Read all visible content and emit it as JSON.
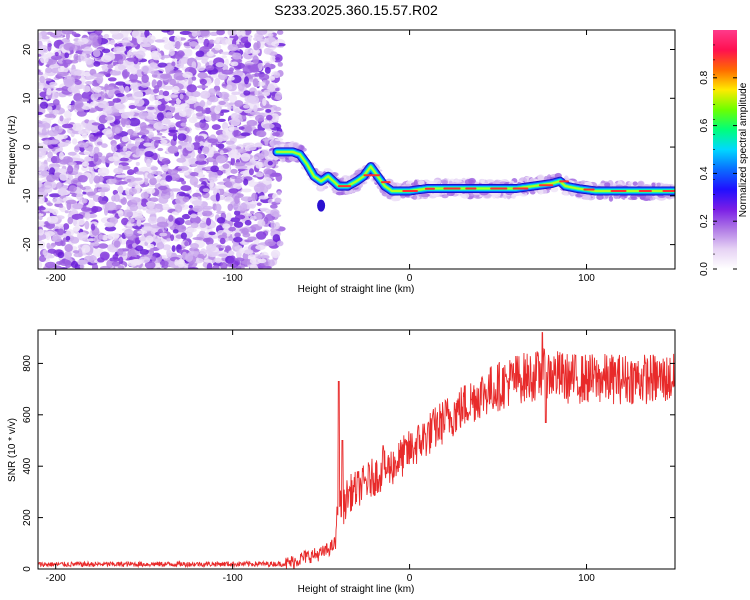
{
  "title": "S233.2025.360.15.57.R02",
  "chart_data": [
    {
      "type": "heatmap",
      "xlabel": "Height of straight line (km)",
      "ylabel": "Frequency (Hz)",
      "xlim": [
        -210,
        150
      ],
      "ylim": [
        -25,
        24
      ],
      "xticks": [
        -200,
        -100,
        0,
        100
      ],
      "yticks": [
        -20,
        -10,
        0,
        10,
        20
      ],
      "noise_region_x": [
        -210,
        -73
      ],
      "signal_track": {
        "x": [
          -75,
          -66,
          -62,
          -58,
          -54,
          -50,
          -46,
          -40,
          -35,
          -30,
          -26,
          -22,
          -18,
          -14,
          -10,
          -5,
          0,
          10,
          20,
          30,
          40,
          50,
          60,
          70,
          80,
          85,
          88,
          95,
          105,
          120,
          150
        ],
        "y": [
          -1,
          -1,
          -1.5,
          -3.5,
          -6,
          -7,
          -6,
          -8,
          -8,
          -7,
          -6,
          -4,
          -6,
          -8,
          -9,
          -9,
          -9,
          -8.5,
          -8.5,
          -8.5,
          -8.5,
          -8.5,
          -8.5,
          -8,
          -7.5,
          -7,
          -8,
          -8.5,
          -9,
          -9,
          -9
        ]
      },
      "colorbar": {
        "label": "Normalized spectral amplitude",
        "ticks": [
          "0.0",
          "0.2",
          "0.4",
          "0.6",
          "0.8"
        ],
        "colors": [
          "#ffffff",
          "#e6d2f4",
          "#b07ae6",
          "#7a1ee6",
          "#2010ff",
          "#0a6dff",
          "#00d8ff",
          "#00ff7a",
          "#6dff00",
          "#ffea00",
          "#ff6a00",
          "#ff1050",
          "#ff3a8a"
        ]
      }
    },
    {
      "type": "line",
      "xlabel": "Height of straight line (km)",
      "ylabel": "SNR (10 * v/v)",
      "xlim": [
        -210,
        150
      ],
      "ylim": [
        0,
        930
      ],
      "xticks": [
        -200,
        -100,
        0,
        100
      ],
      "yticks": [
        0,
        200,
        400,
        600,
        800
      ],
      "color": "#e82a2a",
      "envelope": {
        "x": [
          -210,
          -70,
          -65,
          -60,
          -50,
          -45,
          -42,
          -40,
          -38,
          -35,
          -30,
          -20,
          -10,
          0,
          10,
          20,
          30,
          40,
          50,
          60,
          70,
          80,
          90,
          100,
          120,
          150
        ],
        "y": [
          18,
          20,
          30,
          45,
          60,
          80,
          100,
          280,
          220,
          290,
          310,
          360,
          400,
          460,
          520,
          580,
          630,
          680,
          710,
          740,
          750,
          760,
          740,
          740,
          740,
          740
        ]
      },
      "spikes": [
        {
          "x": -40,
          "y": 730
        },
        {
          "x": -38,
          "y": 500
        },
        {
          "x": -15,
          "y": 480
        },
        {
          "x": 75,
          "y": 920
        },
        {
          "x": 77,
          "y": 570
        }
      ]
    }
  ]
}
